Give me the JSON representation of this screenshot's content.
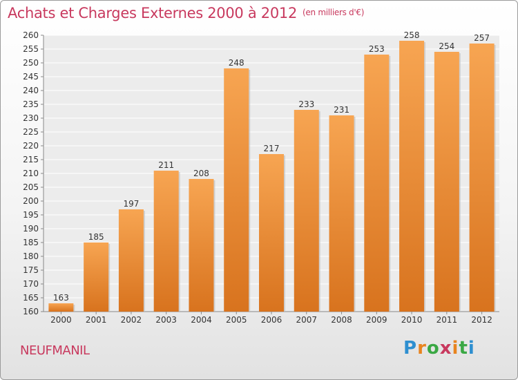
{
  "header": {
    "title": "Achats et Charges Externes 2000 à 2012",
    "unit": "(en milliers d'€)"
  },
  "footer": {
    "city": "NEUFMANIL",
    "brand": "Proxiti"
  },
  "brand_colors": [
    "#2e8fd0",
    "#e8841f",
    "#3aa844",
    "#c8395e"
  ],
  "chart_data": {
    "type": "bar",
    "title": "Achats et Charges Externes 2000 à 2012",
    "subtitle": "(en milliers d'€)",
    "xlabel": "",
    "ylabel": "",
    "categories": [
      "2000",
      "2001",
      "2002",
      "2003",
      "2004",
      "2005",
      "2006",
      "2007",
      "2008",
      "2009",
      "2010",
      "2011",
      "2012"
    ],
    "values": [
      163,
      185,
      197,
      211,
      208,
      248,
      217,
      233,
      231,
      253,
      258,
      254,
      257
    ],
    "ylim": [
      160,
      260
    ],
    "yticks": [
      160,
      165,
      170,
      175,
      180,
      185,
      190,
      195,
      200,
      205,
      210,
      215,
      220,
      225,
      230,
      235,
      240,
      245,
      250,
      255,
      260
    ],
    "grid": true,
    "legend": "none",
    "bar_color": "#f0963a"
  }
}
